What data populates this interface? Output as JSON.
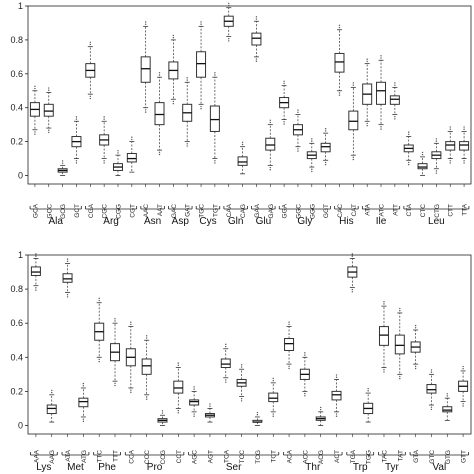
{
  "chart_data": [
    {
      "type": "boxplot",
      "panel": "top",
      "ylim": [
        -0.05,
        1.0
      ],
      "yticks": [
        "0",
        "0.2",
        "0.4",
        "0.6",
        "0.8",
        "1"
      ],
      "ytick_values": [
        0,
        0.2,
        0.4,
        0.6,
        0.8,
        1.0
      ],
      "grid": false,
      "codons": [
        "GCA",
        "GCC",
        "GCG",
        "GCT",
        "CGA",
        "CGC",
        "CGG",
        "CGT",
        "AAC",
        "AAT",
        "GAC",
        "GAT",
        "TGC",
        "TGT",
        "CAA",
        "CAG",
        "GAA",
        "GAG",
        "GGA",
        "GGC",
        "GGG",
        "GGT",
        "CAC",
        "CAT",
        "ATA",
        "ATC",
        "ATT",
        "CTA",
        "CTC",
        "CTG",
        "CTT",
        "TTA"
      ],
      "amino_acids": [
        {
          "name": "Ala",
          "start": 0,
          "end": 3
        },
        {
          "name": "Arg",
          "start": 4,
          "end": 7
        },
        {
          "name": "Asn",
          "start": 8,
          "end": 9
        },
        {
          "name": "Asp",
          "start": 10,
          "end": 11
        },
        {
          "name": "Cys",
          "start": 12,
          "end": 13
        },
        {
          "name": "Gln",
          "start": 14,
          "end": 15
        },
        {
          "name": "Glu",
          "start": 16,
          "end": 17
        },
        {
          "name": "Gly",
          "start": 18,
          "end": 21
        },
        {
          "name": "His",
          "start": 22,
          "end": 23
        },
        {
          "name": "Ile",
          "start": 24,
          "end": 26
        },
        {
          "name": "Leu",
          "start": 27,
          "end": 31
        }
      ],
      "boxes": [
        {
          "q1": 0.35,
          "median": 0.39,
          "q3": 0.43,
          "wl": 0.27,
          "wh": 0.5
        },
        {
          "q1": 0.35,
          "median": 0.38,
          "q3": 0.42,
          "wl": 0.28,
          "wh": 0.49
        },
        {
          "q1": 0.02,
          "median": 0.03,
          "q3": 0.04,
          "wl": 0.0,
          "wh": 0.06
        },
        {
          "q1": 0.17,
          "median": 0.2,
          "q3": 0.23,
          "wl": 0.1,
          "wh": 0.32
        },
        {
          "q1": 0.58,
          "median": 0.62,
          "q3": 0.66,
          "wl": 0.48,
          "wh": 0.76
        },
        {
          "q1": 0.18,
          "median": 0.21,
          "q3": 0.24,
          "wl": 0.1,
          "wh": 0.32
        },
        {
          "q1": 0.03,
          "median": 0.05,
          "q3": 0.07,
          "wl": 0.0,
          "wh": 0.12
        },
        {
          "q1": 0.08,
          "median": 0.1,
          "q3": 0.13,
          "wl": 0.02,
          "wh": 0.2
        },
        {
          "q1": 0.55,
          "median": 0.63,
          "q3": 0.7,
          "wl": 0.4,
          "wh": 0.88
        },
        {
          "q1": 0.3,
          "median": 0.36,
          "q3": 0.43,
          "wl": 0.15,
          "wh": 0.58
        },
        {
          "q1": 0.57,
          "median": 0.62,
          "q3": 0.67,
          "wl": 0.45,
          "wh": 0.8
        },
        {
          "q1": 0.32,
          "median": 0.37,
          "q3": 0.42,
          "wl": 0.2,
          "wh": 0.55
        },
        {
          "q1": 0.58,
          "median": 0.66,
          "q3": 0.73,
          "wl": 0.42,
          "wh": 0.88
        },
        {
          "q1": 0.26,
          "median": 0.33,
          "q3": 0.41,
          "wl": 0.1,
          "wh": 0.58
        },
        {
          "q1": 0.88,
          "median": 0.91,
          "q3": 0.94,
          "wl": 0.82,
          "wh": 0.99
        },
        {
          "q1": 0.06,
          "median": 0.08,
          "q3": 0.11,
          "wl": 0.01,
          "wh": 0.17
        },
        {
          "q1": 0.77,
          "median": 0.81,
          "q3": 0.84,
          "wl": 0.7,
          "wh": 0.91
        },
        {
          "q1": 0.15,
          "median": 0.18,
          "q3": 0.22,
          "wl": 0.06,
          "wh": 0.3
        },
        {
          "q1": 0.4,
          "median": 0.43,
          "q3": 0.46,
          "wl": 0.33,
          "wh": 0.53
        },
        {
          "q1": 0.24,
          "median": 0.27,
          "q3": 0.3,
          "wl": 0.17,
          "wh": 0.36
        },
        {
          "q1": 0.1,
          "median": 0.12,
          "q3": 0.14,
          "wl": 0.05,
          "wh": 0.19
        },
        {
          "q1": 0.14,
          "median": 0.17,
          "q3": 0.19,
          "wl": 0.09,
          "wh": 0.25
        },
        {
          "q1": 0.61,
          "median": 0.67,
          "q3": 0.72,
          "wl": 0.5,
          "wh": 0.86
        },
        {
          "q1": 0.27,
          "median": 0.32,
          "q3": 0.38,
          "wl": 0.12,
          "wh": 0.52
        },
        {
          "q1": 0.42,
          "median": 0.48,
          "q3": 0.54,
          "wl": 0.32,
          "wh": 0.66
        },
        {
          "q1": 0.42,
          "median": 0.5,
          "q3": 0.55,
          "wl": 0.3,
          "wh": 0.68
        },
        {
          "q1": 0.42,
          "median": 0.45,
          "q3": 0.47,
          "wl": 0.36,
          "wh": 0.52
        },
        {
          "q1": 0.14,
          "median": 0.16,
          "q3": 0.18,
          "wl": 0.09,
          "wh": 0.23
        },
        {
          "q1": 0.04,
          "median": 0.05,
          "q3": 0.07,
          "wl": 0.0,
          "wh": 0.11
        },
        {
          "q1": 0.1,
          "median": 0.12,
          "q3": 0.14,
          "wl": 0.04,
          "wh": 0.19
        },
        {
          "q1": 0.15,
          "median": 0.18,
          "q3": 0.2,
          "wl": 0.1,
          "wh": 0.26
        },
        {
          "q1": 0.15,
          "median": 0.18,
          "q3": 0.2,
          "wl": 0.1,
          "wh": 0.26
        }
      ]
    },
    {
      "type": "boxplot",
      "panel": "bottom",
      "ylim": [
        -0.05,
        1.0
      ],
      "yticks": [
        "0",
        "0.2",
        "0.4",
        "0.6",
        "0.8",
        "1"
      ],
      "ytick_values": [
        0,
        0.2,
        0.4,
        0.6,
        0.8,
        1.0
      ],
      "grid": false,
      "codons": [
        "AAA",
        "AAG",
        "ATA",
        "ATG",
        "TTC",
        "TTT",
        "CCA",
        "CCC",
        "CCG",
        "CCT",
        "AGC",
        "AGT",
        "TCA",
        "TCC",
        "TCG",
        "TCT",
        "ACA",
        "ACC",
        "ACG",
        "ACT",
        "TGA",
        "TGG",
        "TAC",
        "TAT",
        "GTA",
        "GTC",
        "GTG",
        "GTT"
      ],
      "amino_acids": [
        {
          "name": "Lys",
          "start": 0,
          "end": 1
        },
        {
          "name": "Met",
          "start": 2,
          "end": 3
        },
        {
          "name": "Phe",
          "start": 4,
          "end": 5
        },
        {
          "name": "Pro",
          "start": 6,
          "end": 9
        },
        {
          "name": "Ser",
          "start": 10,
          "end": 15
        },
        {
          "name": "Thr",
          "start": 16,
          "end": 19
        },
        {
          "name": "Trp",
          "start": 20,
          "end": 21
        },
        {
          "name": "Tyr",
          "start": 22,
          "end": 23
        },
        {
          "name": "Val",
          "start": 24,
          "end": 27
        }
      ],
      "boxes": [
        {
          "q1": 0.88,
          "median": 0.9,
          "q3": 0.93,
          "wl": 0.82,
          "wh": 0.98
        },
        {
          "q1": 0.07,
          "median": 0.1,
          "q3": 0.12,
          "wl": 0.02,
          "wh": 0.18
        },
        {
          "q1": 0.84,
          "median": 0.86,
          "q3": 0.89,
          "wl": 0.78,
          "wh": 0.95
        },
        {
          "q1": 0.11,
          "median": 0.14,
          "q3": 0.16,
          "wl": 0.05,
          "wh": 0.22
        },
        {
          "q1": 0.5,
          "median": 0.55,
          "q3": 0.6,
          "wl": 0.4,
          "wh": 0.72
        },
        {
          "q1": 0.38,
          "median": 0.43,
          "q3": 0.48,
          "wl": 0.26,
          "wh": 0.6
        },
        {
          "q1": 0.35,
          "median": 0.4,
          "q3": 0.45,
          "wl": 0.22,
          "wh": 0.58
        },
        {
          "q1": 0.3,
          "median": 0.35,
          "q3": 0.39,
          "wl": 0.18,
          "wh": 0.5
        },
        {
          "q1": 0.02,
          "median": 0.03,
          "q3": 0.04,
          "wl": 0.0,
          "wh": 0.06
        },
        {
          "q1": 0.19,
          "median": 0.22,
          "q3": 0.26,
          "wl": 0.1,
          "wh": 0.34
        },
        {
          "q1": 0.12,
          "median": 0.14,
          "q3": 0.15,
          "wl": 0.08,
          "wh": 0.2
        },
        {
          "q1": 0.05,
          "median": 0.06,
          "q3": 0.07,
          "wl": 0.02,
          "wh": 0.1
        },
        {
          "q1": 0.34,
          "median": 0.36,
          "q3": 0.39,
          "wl": 0.28,
          "wh": 0.45
        },
        {
          "q1": 0.23,
          "median": 0.25,
          "q3": 0.27,
          "wl": 0.17,
          "wh": 0.33
        },
        {
          "q1": 0.02,
          "median": 0.02,
          "q3": 0.03,
          "wl": 0.0,
          "wh": 0.05
        },
        {
          "q1": 0.14,
          "median": 0.16,
          "q3": 0.19,
          "wl": 0.08,
          "wh": 0.25
        },
        {
          "q1": 0.44,
          "median": 0.48,
          "q3": 0.51,
          "wl": 0.36,
          "wh": 0.58
        },
        {
          "q1": 0.27,
          "median": 0.3,
          "q3": 0.33,
          "wl": 0.2,
          "wh": 0.4
        },
        {
          "q1": 0.03,
          "median": 0.04,
          "q3": 0.05,
          "wl": 0.0,
          "wh": 0.08
        },
        {
          "q1": 0.15,
          "median": 0.18,
          "q3": 0.2,
          "wl": 0.08,
          "wh": 0.27
        },
        {
          "q1": 0.87,
          "median": 0.9,
          "q3": 0.93,
          "wl": 0.81,
          "wh": 0.98
        },
        {
          "q1": 0.07,
          "median": 0.1,
          "q3": 0.13,
          "wl": 0.02,
          "wh": 0.19
        },
        {
          "q1": 0.47,
          "median": 0.53,
          "q3": 0.58,
          "wl": 0.34,
          "wh": 0.7
        },
        {
          "q1": 0.42,
          "median": 0.47,
          "q3": 0.53,
          "wl": 0.3,
          "wh": 0.66
        },
        {
          "q1": 0.43,
          "median": 0.46,
          "q3": 0.49,
          "wl": 0.36,
          "wh": 0.56
        },
        {
          "q1": 0.19,
          "median": 0.21,
          "q3": 0.24,
          "wl": 0.12,
          "wh": 0.3
        },
        {
          "q1": 0.08,
          "median": 0.09,
          "q3": 0.11,
          "wl": 0.03,
          "wh": 0.16
        },
        {
          "q1": 0.2,
          "median": 0.23,
          "q3": 0.26,
          "wl": 0.14,
          "wh": 0.32
        }
      ]
    }
  ]
}
